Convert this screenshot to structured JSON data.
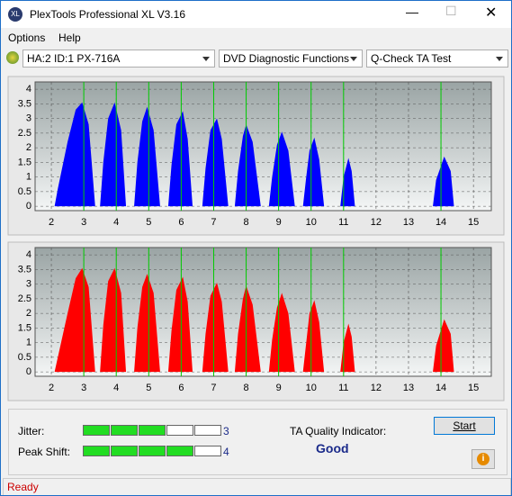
{
  "window": {
    "title": "PlexTools Professional XL V3.16",
    "menu": [
      "Options",
      "Help"
    ],
    "drive": "HA:2 ID:1  PX-716A",
    "function": "DVD Diagnostic Functions",
    "test": "Q-Check TA Test"
  },
  "chart_data": [
    {
      "type": "area",
      "color": "#0000ff",
      "marker_color": "#00cc00",
      "markers": [
        3,
        4,
        5,
        6,
        7,
        8,
        9,
        10,
        11,
        14
      ],
      "grid": true,
      "xlim": [
        1.5,
        15.55
      ],
      "ylim": [
        -0.15,
        4.25
      ],
      "xticks": [
        2,
        3,
        4,
        5,
        6,
        7,
        8,
        9,
        10,
        11,
        12,
        13,
        14,
        15
      ],
      "yticks": [
        0,
        0.5,
        1,
        1.5,
        2,
        2.5,
        3,
        3.5,
        4
      ],
      "x": [
        2.1,
        2.2,
        2.5,
        2.75,
        2.95,
        3.15,
        3.35,
        3.5,
        3.6,
        3.75,
        3.95,
        4.15,
        4.3,
        4.55,
        4.65,
        4.8,
        4.95,
        5.15,
        5.35,
        5.6,
        5.7,
        5.85,
        6.05,
        6.2,
        6.35,
        6.65,
        6.75,
        6.9,
        7.1,
        7.25,
        7.45,
        7.65,
        7.75,
        7.9,
        8.0,
        8.2,
        8.45,
        8.7,
        8.8,
        8.95,
        9.1,
        9.3,
        9.5,
        9.75,
        9.85,
        9.95,
        10.1,
        10.25,
        10.4,
        10.9,
        11.0,
        11.15,
        11.25,
        11.35,
        13.75,
        13.85,
        14.1,
        14.3,
        14.4
      ],
      "values": [
        0,
        0.6,
        2.2,
        3.3,
        3.55,
        2.8,
        0,
        0,
        1.5,
        3.0,
        3.55,
        2.6,
        0,
        0,
        1.5,
        2.9,
        3.4,
        2.6,
        0,
        0,
        1.4,
        2.8,
        3.25,
        2.3,
        0,
        0,
        1.3,
        2.6,
        3.0,
        2.3,
        0,
        0,
        1.2,
        2.4,
        2.8,
        2.2,
        0,
        0,
        1.0,
        2.1,
        2.55,
        1.9,
        0,
        0,
        1.0,
        1.9,
        2.35,
        1.6,
        0,
        0,
        1.0,
        1.65,
        1.2,
        0,
        0,
        0.9,
        1.7,
        1.2,
        0
      ]
    },
    {
      "type": "area",
      "color": "#ff0000",
      "marker_color": "#00cc00",
      "markers": [
        3,
        4,
        5,
        6,
        7,
        8,
        9,
        10,
        11,
        14
      ],
      "grid": true,
      "xlim": [
        1.5,
        15.55
      ],
      "ylim": [
        -0.15,
        4.25
      ],
      "xticks": [
        2,
        3,
        4,
        5,
        6,
        7,
        8,
        9,
        10,
        11,
        12,
        13,
        14,
        15
      ],
      "yticks": [
        0,
        0.5,
        1,
        1.5,
        2,
        2.5,
        3,
        3.5,
        4
      ],
      "x": [
        2.1,
        2.2,
        2.5,
        2.75,
        2.95,
        3.15,
        3.35,
        3.5,
        3.6,
        3.75,
        3.95,
        4.15,
        4.3,
        4.55,
        4.65,
        4.8,
        4.95,
        5.15,
        5.35,
        5.6,
        5.7,
        5.85,
        6.05,
        6.2,
        6.35,
        6.65,
        6.75,
        6.9,
        7.1,
        7.25,
        7.45,
        7.65,
        7.75,
        7.9,
        8.0,
        8.2,
        8.45,
        8.7,
        8.8,
        8.95,
        9.1,
        9.3,
        9.5,
        9.75,
        9.85,
        9.95,
        10.1,
        10.25,
        10.4,
        10.9,
        11.0,
        11.15,
        11.25,
        11.35,
        13.75,
        13.85,
        14.1,
        14.3,
        14.4
      ],
      "values": [
        0,
        0.5,
        2.0,
        3.2,
        3.55,
        2.9,
        0,
        0,
        1.6,
        3.1,
        3.55,
        2.7,
        0,
        0,
        1.5,
        2.9,
        3.35,
        2.7,
        0,
        0,
        1.4,
        2.8,
        3.25,
        2.4,
        0,
        0,
        1.3,
        2.6,
        3.05,
        2.4,
        0,
        0,
        1.3,
        2.5,
        2.95,
        2.3,
        0,
        0,
        1.1,
        2.2,
        2.7,
        2.0,
        0,
        0,
        1.0,
        2.0,
        2.45,
        1.7,
        0,
        0,
        1.0,
        1.65,
        1.2,
        0,
        0,
        0.9,
        1.8,
        1.3,
        0
      ]
    }
  ],
  "results": {
    "jitter_label": "Jitter:",
    "jitter": 3,
    "peak_label": "Peak Shift:",
    "peak": 4,
    "ta_label": "TA Quality Indicator:",
    "ta": "Good",
    "start": "Start"
  },
  "status": "Ready"
}
